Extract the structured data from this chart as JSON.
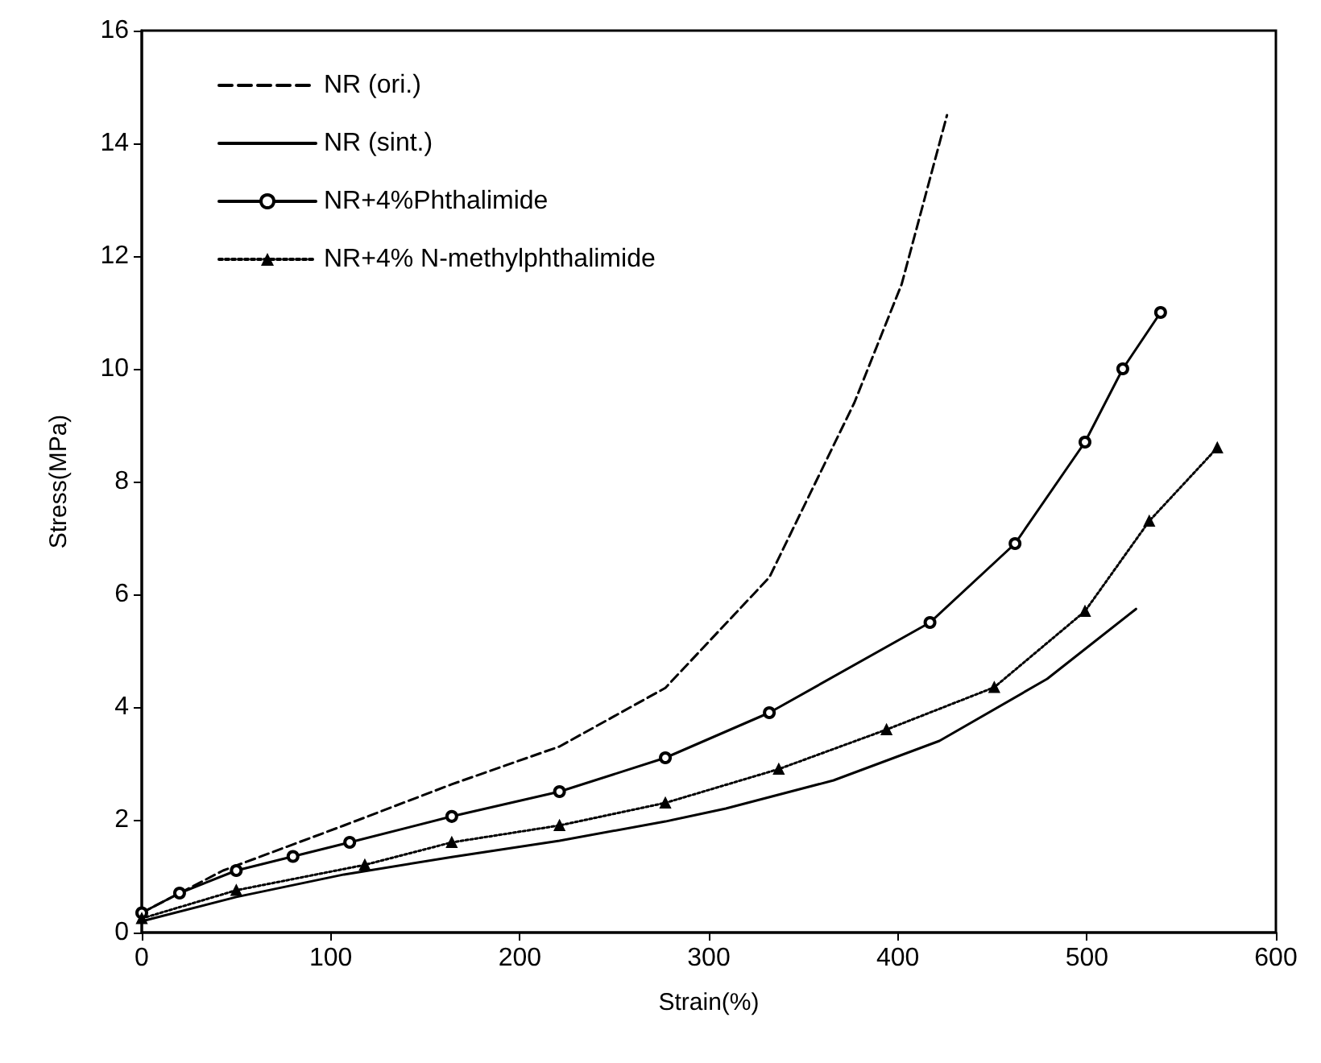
{
  "chart_data": {
    "type": "line",
    "xlabel": "Strain(%)",
    "ylabel": "Stress(MPa)",
    "xlim": [
      0,
      600
    ],
    "xticks": [
      0,
      100,
      200,
      300,
      400,
      500,
      600
    ],
    "ylim": [
      0,
      16
    ],
    "yticks": [
      0,
      2,
      4,
      6,
      8,
      10,
      12,
      14,
      16
    ],
    "grid": false,
    "legend": "top left",
    "series": [
      {
        "name": "NR (ori.)",
        "color": "#000000",
        "line_style": "dashed",
        "marker": "none",
        "x": [
          0,
          43,
          107,
          164,
          221,
          277,
          332,
          377,
          402,
          426
        ],
        "values": [
          0.35,
          1.1,
          1.9,
          2.63,
          3.3,
          4.34,
          6.3,
          9.4,
          11.5,
          14.5
        ]
      },
      {
        "name": "NR (sint.)",
        "color": "#000000",
        "line_style": "solid",
        "marker": "none",
        "x": [
          0,
          50,
          107,
          164,
          221,
          277,
          309,
          366,
          422,
          479,
          526
        ],
        "values": [
          0.2,
          0.63,
          1.03,
          1.34,
          1.63,
          1.97,
          2.2,
          2.7,
          3.4,
          4.5,
          5.74
        ]
      },
      {
        "name": "NR+4%Phthalimide",
        "color": "#000000",
        "line_style": "solid",
        "marker": "circle",
        "x": [
          0,
          20,
          50,
          80,
          110,
          164,
          221,
          277,
          332,
          417,
          462,
          499,
          519,
          539
        ],
        "values": [
          0.35,
          0.7,
          1.1,
          1.35,
          1.6,
          2.06,
          2.5,
          3.1,
          3.9,
          5.5,
          6.9,
          8.7,
          10.0,
          11.0
        ]
      },
      {
        "name": "NR+4% N-methylphthalimide",
        "color": "#000000",
        "line_style": "dotted",
        "marker": "triangle",
        "x": [
          0,
          50,
          118,
          164,
          221,
          277,
          337,
          394,
          451,
          499,
          533,
          569
        ],
        "values": [
          0.25,
          0.75,
          1.2,
          1.6,
          1.9,
          2.3,
          2.9,
          3.6,
          4.35,
          5.7,
          7.3,
          8.6
        ]
      }
    ]
  }
}
